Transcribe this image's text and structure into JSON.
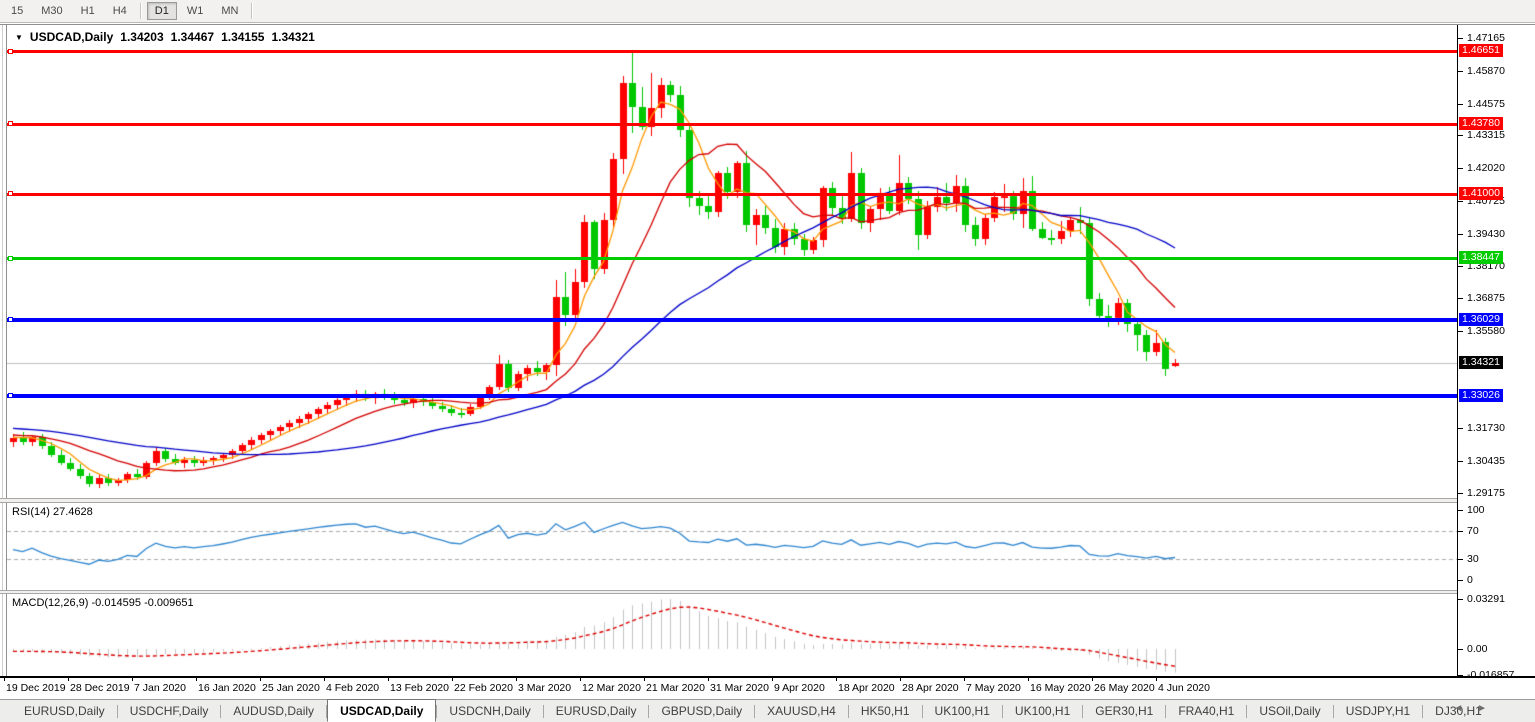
{
  "toolbar": {
    "timeframes": [
      "15",
      "M30",
      "H1",
      "H4",
      "D1",
      "W1",
      "MN"
    ],
    "active": "D1"
  },
  "chart": {
    "dropdown_glyph": "▼",
    "title_symbol": "USDCAD,Daily",
    "ohlc_display": {
      "open": "1.34203",
      "high": "1.34467",
      "low": "1.34155",
      "close": "1.34321"
    },
    "price_axis_ticks": [
      "1.47165",
      "1.45870",
      "1.44575",
      "1.43315",
      "1.42020",
      "1.40725",
      "1.39430",
      "1.38170",
      "1.36875",
      "1.35580",
      "1.31730",
      "1.30435",
      "1.29175"
    ],
    "levels": [
      {
        "label": "1.46651",
        "price": 1.46651,
        "color": "#ff0000",
        "thickness": 3
      },
      {
        "label": "1.43780",
        "price": 1.4378,
        "color": "#ff0000",
        "thickness": 3
      },
      {
        "label": "1.41000",
        "price": 1.41,
        "color": "#ff0000",
        "thickness": 3
      },
      {
        "label": "1.38447",
        "price": 1.38447,
        "color": "#00cc00",
        "thickness": 3
      },
      {
        "label": "1.36029",
        "price": 1.36029,
        "color": "#0000ff",
        "thickness": 4
      },
      {
        "label": "1.33026",
        "price": 1.33026,
        "color": "#0000ff",
        "thickness": 4
      }
    ],
    "current_price": {
      "label": "1.34321",
      "price": 1.34321,
      "badge_color": "#000000",
      "line_color": "#c0c0c0"
    }
  },
  "rsi": {
    "name": "RSI(14)",
    "value": "27.4628",
    "axis": [
      {
        "label": "100",
        "v": 100
      },
      {
        "label": "70",
        "v": 70
      },
      {
        "label": "30",
        "v": 30
      },
      {
        "label": "0",
        "v": 0
      }
    ],
    "upper_level": 70,
    "lower_level": 30,
    "line_color": "#2e86d0",
    "level_color": "#aaaaaa"
  },
  "macd": {
    "name": "MACD(12,26,9)",
    "main_value": "-0.014595",
    "signal_value": "-0.009651",
    "axis_max": {
      "label": "0.03291",
      "v": 0.03291
    },
    "axis_zero": {
      "label": "0.00",
      "v": 0
    },
    "axis_min": {
      "label": "-0.016857",
      "v": -0.016857
    },
    "histogram_color": "#c4c4c4",
    "signal_color": "#dd0000"
  },
  "time_axis": {
    "labels": [
      "19 Dec 2019",
      "28 Dec 2019",
      "7 Jan 2020",
      "16 Jan 2020",
      "25 Jan 2020",
      "4 Feb 2020",
      "13 Feb 2020",
      "22 Feb 2020",
      "3 Mar 2020",
      "12 Mar 2020",
      "21 Mar 2020",
      "31 Mar 2020",
      "9 Apr 2020",
      "18 Apr 2020",
      "28 Apr 2020",
      "7 May 2020",
      "16 May 2020",
      "26 May 2020",
      "4 Jun 2020"
    ]
  },
  "tabs": {
    "items": [
      "EURUSD,Daily",
      "USDCHF,Daily",
      "AUDUSD,Daily",
      "USDCAD,Daily",
      "USDCNH,Daily",
      "EURUSD,Daily",
      "GBPUSD,Daily",
      "XAUUSD,H4",
      "HK50,H1",
      "UK100,H1",
      "UK100,H1",
      "GER30,H1",
      "FRA40,H1",
      "USOil,Daily",
      "USDJPY,H1",
      "DJ30,H1"
    ],
    "active_index": 3,
    "scroll_left_glyph": "◄",
    "scroll_right_glyph": "►"
  },
  "chart_data": {
    "type": "candlestick",
    "symbol": "USDCAD",
    "period": "Daily",
    "up_color": "#ff0000",
    "down_color": "#00c800",
    "y_range": [
      1.29175,
      1.47165
    ],
    "moving_averages": [
      {
        "period": 5,
        "color": "#ff9900"
      },
      {
        "period": 13,
        "color": "#d40000"
      },
      {
        "period": 34,
        "color": "#0000c8"
      }
    ],
    "ohlc": [
      [
        1.312,
        1.3152,
        1.3098,
        1.3135
      ],
      [
        1.3135,
        1.3158,
        1.3108,
        1.312
      ],
      [
        1.312,
        1.3148,
        1.3102,
        1.314
      ],
      [
        1.314,
        1.3152,
        1.3092,
        1.3103
      ],
      [
        1.3103,
        1.312,
        1.3058,
        1.3068
      ],
      [
        1.3068,
        1.3086,
        1.3028,
        1.3038
      ],
      [
        1.3038,
        1.3056,
        1.3006,
        1.3014
      ],
      [
        1.3014,
        1.3032,
        1.2972,
        1.2984
      ],
      [
        1.2984,
        1.2996,
        1.2942,
        1.2952
      ],
      [
        1.2952,
        1.2988,
        1.2938,
        1.2976
      ],
      [
        1.2976,
        1.2994,
        1.2946,
        1.2957
      ],
      [
        1.2957,
        1.2976,
        1.2944,
        1.2968
      ],
      [
        1.2968,
        1.3002,
        1.2958,
        1.2992
      ],
      [
        1.2992,
        1.3012,
        1.2968,
        1.2979
      ],
      [
        1.2979,
        1.3045,
        1.2972,
        1.3036
      ],
      [
        1.3036,
        1.3098,
        1.3026,
        1.3085
      ],
      [
        1.3085,
        1.3096,
        1.3042,
        1.3053
      ],
      [
        1.3053,
        1.3072,
        1.3028,
        1.3038
      ],
      [
        1.3038,
        1.3058,
        1.3018,
        1.3049
      ],
      [
        1.3049,
        1.3062,
        1.3022,
        1.3036
      ],
      [
        1.3036,
        1.3061,
        1.3026,
        1.3047
      ],
      [
        1.3047,
        1.3063,
        1.303,
        1.3055
      ],
      [
        1.3055,
        1.3076,
        1.3042,
        1.3068
      ],
      [
        1.3068,
        1.3092,
        1.3052,
        1.3083
      ],
      [
        1.3083,
        1.3115,
        1.307,
        1.3106
      ],
      [
        1.3106,
        1.3138,
        1.3092,
        1.3128
      ],
      [
        1.3128,
        1.3155,
        1.3112,
        1.3146
      ],
      [
        1.3146,
        1.317,
        1.3128,
        1.3161
      ],
      [
        1.3161,
        1.3188,
        1.3142,
        1.3178
      ],
      [
        1.3178,
        1.3205,
        1.3158,
        1.3196
      ],
      [
        1.3196,
        1.3222,
        1.3176,
        1.3212
      ],
      [
        1.3212,
        1.3238,
        1.3192,
        1.3228
      ],
      [
        1.3228,
        1.3258,
        1.321,
        1.3248
      ],
      [
        1.3248,
        1.3276,
        1.3228,
        1.3266
      ],
      [
        1.3266,
        1.3292,
        1.3246,
        1.3284
      ],
      [
        1.3284,
        1.331,
        1.3262,
        1.33
      ],
      [
        1.33,
        1.3324,
        1.3276,
        1.3307
      ],
      [
        1.3307,
        1.3326,
        1.3282,
        1.3292
      ],
      [
        1.3292,
        1.3317,
        1.3271,
        1.3309
      ],
      [
        1.3309,
        1.3328,
        1.3284,
        1.3296
      ],
      [
        1.3296,
        1.3315,
        1.327,
        1.3284
      ],
      [
        1.3284,
        1.3302,
        1.326,
        1.3274
      ],
      [
        1.3274,
        1.3297,
        1.3254,
        1.3289
      ],
      [
        1.3289,
        1.3307,
        1.3263,
        1.3276
      ],
      [
        1.3276,
        1.3293,
        1.3248,
        1.3261
      ],
      [
        1.3261,
        1.3279,
        1.3236,
        1.3249
      ],
      [
        1.3249,
        1.3267,
        1.3222,
        1.3233
      ],
      [
        1.3233,
        1.3254,
        1.3214,
        1.3228
      ],
      [
        1.3228,
        1.3268,
        1.322,
        1.3259
      ],
      [
        1.3259,
        1.3306,
        1.3248,
        1.3296
      ],
      [
        1.3296,
        1.3346,
        1.3286,
        1.3336
      ],
      [
        1.3336,
        1.3464,
        1.3326,
        1.3429
      ],
      [
        1.3429,
        1.3445,
        1.3318,
        1.3332
      ],
      [
        1.3332,
        1.3398,
        1.3322,
        1.3388
      ],
      [
        1.3388,
        1.3424,
        1.3362,
        1.3412
      ],
      [
        1.3412,
        1.3438,
        1.338,
        1.3396
      ],
      [
        1.3396,
        1.3432,
        1.3366,
        1.3424
      ],
      [
        1.3424,
        1.3758,
        1.338,
        1.3694
      ],
      [
        1.3694,
        1.379,
        1.3577,
        1.3621
      ],
      [
        1.3621,
        1.3805,
        1.36,
        1.3752
      ],
      [
        1.3752,
        1.4016,
        1.3728,
        1.399
      ],
      [
        1.399,
        1.3998,
        1.3762,
        1.3803
      ],
      [
        1.3803,
        1.4025,
        1.3782,
        1.3995
      ],
      [
        1.3995,
        1.426,
        1.3965,
        1.424
      ],
      [
        1.424,
        1.4565,
        1.418,
        1.4537
      ],
      [
        1.4537,
        1.4669,
        1.4341,
        1.4445
      ],
      [
        1.4445,
        1.4524,
        1.4352,
        1.4366
      ],
      [
        1.4366,
        1.4578,
        1.433,
        1.4438
      ],
      [
        1.4438,
        1.456,
        1.44,
        1.453
      ],
      [
        1.453,
        1.4548,
        1.4465,
        1.4492
      ],
      [
        1.4492,
        1.4525,
        1.4326,
        1.4352
      ],
      [
        1.4352,
        1.437,
        1.4049,
        1.4085
      ],
      [
        1.4085,
        1.411,
        1.4016,
        1.4052
      ],
      [
        1.4052,
        1.409,
        1.4,
        1.403
      ],
      [
        1.403,
        1.419,
        1.401,
        1.4183
      ],
      [
        1.4183,
        1.4205,
        1.4078,
        1.4109
      ],
      [
        1.4109,
        1.423,
        1.4085,
        1.4222
      ],
      [
        1.4222,
        1.427,
        1.3948,
        1.3976
      ],
      [
        1.3976,
        1.404,
        1.39,
        1.4016
      ],
      [
        1.4016,
        1.4052,
        1.3942,
        1.3965
      ],
      [
        1.3965,
        1.4,
        1.3868,
        1.389
      ],
      [
        1.389,
        1.3986,
        1.386,
        1.3963
      ],
      [
        1.3963,
        1.3984,
        1.3898,
        1.3921
      ],
      [
        1.3921,
        1.3942,
        1.3855,
        1.3878
      ],
      [
        1.3878,
        1.3928,
        1.3862,
        1.3916
      ],
      [
        1.3916,
        1.413,
        1.3892,
        1.4124
      ],
      [
        1.4124,
        1.4148,
        1.4012,
        1.4043
      ],
      [
        1.4043,
        1.4092,
        1.398,
        1.4
      ],
      [
        1.4,
        1.4265,
        1.399,
        1.4183
      ],
      [
        1.4183,
        1.4202,
        1.3962,
        1.3985
      ],
      [
        1.3985,
        1.4052,
        1.395,
        1.404
      ],
      [
        1.404,
        1.4122,
        1.3998,
        1.4104
      ],
      [
        1.4104,
        1.4128,
        1.4022,
        1.4032
      ],
      [
        1.4032,
        1.4252,
        1.4015,
        1.4144
      ],
      [
        1.4144,
        1.4166,
        1.406,
        1.408
      ],
      [
        1.408,
        1.4112,
        1.3878,
        1.3938
      ],
      [
        1.3938,
        1.4072,
        1.392,
        1.4048
      ],
      [
        1.4048,
        1.4126,
        1.4028,
        1.4089
      ],
      [
        1.4089,
        1.4145,
        1.4034,
        1.4065
      ],
      [
        1.4065,
        1.4175,
        1.4029,
        1.413
      ],
      [
        1.413,
        1.4163,
        1.3948,
        1.3977
      ],
      [
        1.3977,
        1.401,
        1.3895,
        1.3923
      ],
      [
        1.3923,
        1.402,
        1.3899,
        1.4003
      ],
      [
        1.4003,
        1.4108,
        1.399,
        1.4089
      ],
      [
        1.4089,
        1.4138,
        1.403,
        1.4091
      ],
      [
        1.4091,
        1.411,
        1.3998,
        1.4019
      ],
      [
        1.4019,
        1.4162,
        1.3966,
        1.411
      ],
      [
        1.411,
        1.417,
        1.3953,
        1.3961
      ],
      [
        1.3961,
        1.399,
        1.392,
        1.3926
      ],
      [
        1.3926,
        1.3958,
        1.39,
        1.392
      ],
      [
        1.392,
        1.3992,
        1.3902,
        1.3953
      ],
      [
        1.3953,
        1.4005,
        1.393,
        1.3996
      ],
      [
        1.3996,
        1.4048,
        1.394,
        1.3984
      ],
      [
        1.3984,
        1.401,
        1.3655,
        1.3685
      ],
      [
        1.3685,
        1.371,
        1.3601,
        1.3617
      ],
      [
        1.3617,
        1.366,
        1.3575,
        1.3608
      ],
      [
        1.3608,
        1.369,
        1.358,
        1.3668
      ],
      [
        1.3668,
        1.3685,
        1.3556,
        1.3585
      ],
      [
        1.3585,
        1.3608,
        1.348,
        1.3541
      ],
      [
        1.3541,
        1.356,
        1.344,
        1.3474
      ],
      [
        1.3474,
        1.3562,
        1.3458,
        1.351
      ],
      [
        1.3513,
        1.3531,
        1.3379,
        1.3407
      ],
      [
        1.34203,
        1.34467,
        1.34155,
        1.34321
      ]
    ]
  }
}
